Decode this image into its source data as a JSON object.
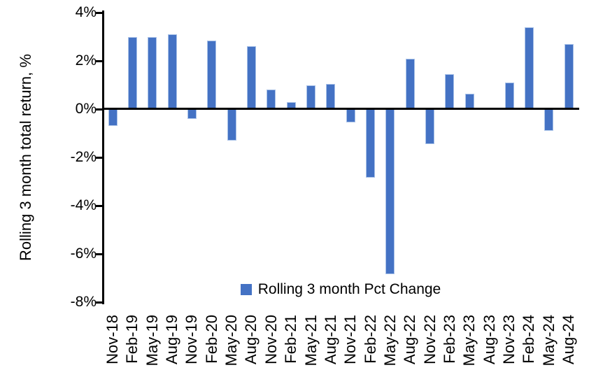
{
  "chart_data": {
    "type": "bar",
    "title": "",
    "ylabel": "Rolling 3 month total return, %",
    "xlabel": "",
    "ylim": [
      -8,
      4
    ],
    "grid": false,
    "legend_position": "bottom-center",
    "yticks": [
      4,
      2,
      0,
      -2,
      -4,
      -6,
      -8
    ],
    "ytick_labels": [
      "4%",
      "2%",
      "0%",
      "-2%",
      "-4%",
      "-6%",
      "-8%"
    ],
    "categories": [
      "Nov-18",
      "Feb-19",
      "May-19",
      "Aug-19",
      "Nov-19",
      "Feb-20",
      "May-20",
      "Aug-20",
      "Nov-20",
      "Feb-21",
      "May-21",
      "Aug-21",
      "Nov-21",
      "Feb-22",
      "May-22",
      "Aug-22",
      "Nov-22",
      "Feb-23",
      "May-23",
      "Aug-23",
      "Nov-23",
      "Feb-24",
      "May-24",
      "Aug-24"
    ],
    "series": [
      {
        "name": "Rolling 3 month Pct Change",
        "values": [
          -0.7,
          3.0,
          3.0,
          3.1,
          -0.4,
          2.85,
          -1.3,
          2.6,
          0.8,
          0.3,
          1.0,
          1.05,
          -0.55,
          -2.85,
          -6.85,
          2.1,
          -1.45,
          1.45,
          0.65,
          0.0,
          1.1,
          3.4,
          -0.9,
          2.7
        ]
      }
    ],
    "legend": [
      {
        "label": "Rolling 3 month Pct Change",
        "color": "#4472c4"
      }
    ],
    "colors": {
      "bar_fill": "#4472c4",
      "bar_border": "#a9c2e8",
      "axis": "#000000",
      "text": "#000000",
      "background": "#ffffff"
    }
  }
}
